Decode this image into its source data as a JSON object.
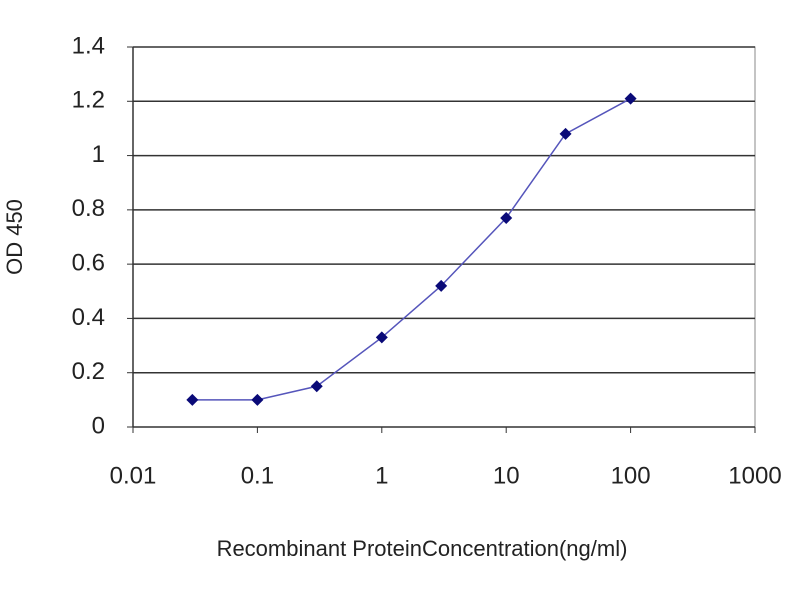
{
  "chart_data": {
    "type": "line",
    "x_label": "Recombinant ProteinConcentration(ng/ml)",
    "y_label": "OD 450",
    "xscale": "log",
    "x": [
      0.03,
      0.1,
      0.3,
      1,
      3,
      10,
      30,
      100
    ],
    "series": [
      {
        "color": "#5555bb",
        "marker_color": "#0a0a78",
        "values": [
          0.1,
          0.1,
          0.15,
          0.33,
          0.52,
          0.77,
          1.08,
          1.21
        ]
      }
    ],
    "xlim": [
      0.01,
      1000
    ],
    "xticks": [
      0.01,
      0.1,
      1,
      10,
      100,
      1000
    ],
    "ylim": [
      0,
      1.4
    ],
    "yticks": [
      0,
      0.2,
      0.4,
      0.6,
      0.8,
      1,
      1.2,
      1.4
    ],
    "grid": true
  }
}
